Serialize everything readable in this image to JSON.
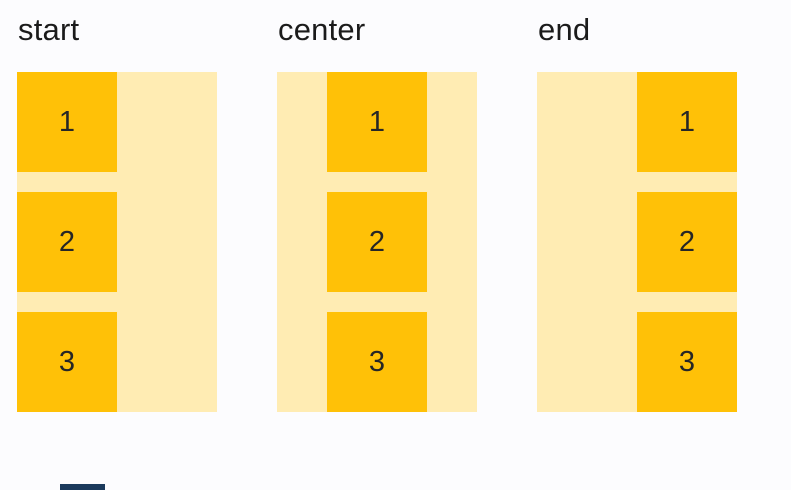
{
  "page": {
    "background": "#fcfcfe"
  },
  "colors": {
    "item_box": "#ffc107",
    "container": "#ffecb3",
    "heading_text": "#1b1b1b",
    "item_number_text": "#262626",
    "scrollbar_thumb": "#1b3a5c"
  },
  "columns": [
    {
      "label": "start",
      "alignment": "start",
      "items": [
        "1",
        "2",
        "3"
      ]
    },
    {
      "label": "center",
      "alignment": "center",
      "items": [
        "1",
        "2",
        "3"
      ]
    },
    {
      "label": "end",
      "alignment": "end",
      "items": [
        "1",
        "2",
        "3"
      ]
    }
  ]
}
